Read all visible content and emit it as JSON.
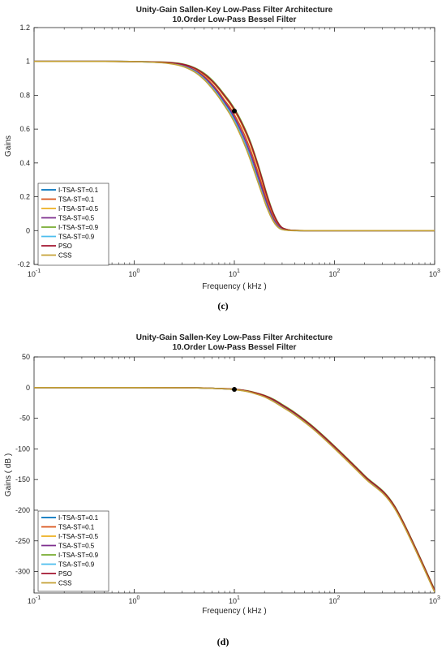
{
  "chart_data": [
    {
      "type": "line",
      "title": "Unity-Gain Sallen-Key Low-Pass Filter Architecture",
      "subtitle": "10.Order Low-Pass Bessel Filter",
      "xlabel": "Frequency ( kHz )",
      "ylabel": "Gains",
      "caption": "(c)",
      "xscale": "log",
      "xlim": [
        0.1,
        1000
      ],
      "ylim": [
        -0.2,
        1.2
      ],
      "xticks": [
        {
          "v": 0.1,
          "base": "10",
          "exp": "-1"
        },
        {
          "v": 1,
          "base": "10",
          "exp": "0"
        },
        {
          "v": 10,
          "base": "10",
          "exp": "1"
        },
        {
          "v": 100,
          "base": "10",
          "exp": "2"
        },
        {
          "v": 1000,
          "base": "10",
          "exp": "3"
        }
      ],
      "yticks": [
        {
          "v": -0.2,
          "label": "-0.2"
        },
        {
          "v": 0,
          "label": "0"
        },
        {
          "v": 0.2,
          "label": "0.2"
        },
        {
          "v": 0.4,
          "label": "0.4"
        },
        {
          "v": 0.6,
          "label": "0.6"
        },
        {
          "v": 0.8,
          "label": "0.8"
        },
        {
          "v": 1,
          "label": "1"
        },
        {
          "v": 1.2,
          "label": "1.2"
        }
      ],
      "legend_position": "bottom-left",
      "marker": {
        "x": 10,
        "y": 0.707
      },
      "series": [
        {
          "name": "I-TSA-ST=0.1",
          "color": "#0072BD",
          "x": [
            0.1,
            0.5,
            1,
            2,
            3,
            4,
            5,
            6,
            7,
            8,
            9,
            10,
            11,
            12,
            13,
            14,
            15,
            17,
            19,
            21,
            24,
            27,
            30,
            35,
            40,
            50,
            100,
            1000
          ],
          "y": [
            1,
            1,
            0.999,
            0.992,
            0.975,
            0.944,
            0.9,
            0.85,
            0.8,
            0.75,
            0.705,
            0.655,
            0.605,
            0.555,
            0.505,
            0.455,
            0.405,
            0.31,
            0.225,
            0.15,
            0.07,
            0.025,
            0.008,
            0.002,
            0.001,
            0,
            0,
            0
          ]
        },
        {
          "name": "TSA-ST=0.1",
          "color": "#D95319",
          "x": [
            0.1,
            0.5,
            1,
            2,
            3,
            4,
            5,
            6,
            7,
            8,
            9,
            10,
            11,
            12,
            13,
            14,
            15,
            17,
            19,
            21,
            24,
            27,
            30,
            35,
            40,
            50,
            100,
            1000
          ],
          "y": [
            1,
            1,
            0.999,
            0.994,
            0.98,
            0.952,
            0.912,
            0.866,
            0.818,
            0.77,
            0.73,
            0.685,
            0.64,
            0.595,
            0.548,
            0.5,
            0.452,
            0.355,
            0.265,
            0.185,
            0.095,
            0.04,
            0.013,
            0.003,
            0.001,
            0,
            0,
            0
          ]
        },
        {
          "name": "I-TSA-ST=0.5",
          "color": "#EDB120",
          "x": [
            0.1,
            0.5,
            1,
            2,
            3,
            4,
            5,
            6,
            7,
            8,
            9,
            10,
            11,
            12,
            13,
            14,
            15,
            17,
            19,
            21,
            24,
            27,
            30,
            35,
            40,
            50,
            100,
            1000
          ],
          "y": [
            1,
            1,
            0.999,
            0.995,
            0.983,
            0.958,
            0.922,
            0.88,
            0.835,
            0.79,
            0.75,
            0.708,
            0.665,
            0.62,
            0.575,
            0.53,
            0.482,
            0.385,
            0.292,
            0.205,
            0.108,
            0.048,
            0.016,
            0.004,
            0.001,
            0,
            0,
            0
          ]
        },
        {
          "name": "TSA-ST=0.5",
          "color": "#7E2F8E",
          "x": [
            0.1,
            0.5,
            1,
            2,
            3,
            4,
            5,
            6,
            7,
            8,
            9,
            10,
            11,
            12,
            13,
            14,
            15,
            17,
            19,
            21,
            24,
            27,
            30,
            35,
            40,
            50,
            100,
            1000
          ],
          "y": [
            1,
            1,
            0.999,
            0.993,
            0.977,
            0.948,
            0.906,
            0.858,
            0.809,
            0.76,
            0.717,
            0.67,
            0.623,
            0.575,
            0.527,
            0.478,
            0.43,
            0.333,
            0.245,
            0.168,
            0.082,
            0.032,
            0.01,
            0.002,
            0.001,
            0,
            0,
            0
          ]
        },
        {
          "name": "I-TSA-ST=0.9",
          "color": "#77AC30",
          "x": [
            0.1,
            0.5,
            1,
            2,
            3,
            4,
            5,
            6,
            7,
            8,
            9,
            10,
            11,
            12,
            13,
            14,
            15,
            17,
            19,
            21,
            24,
            27,
            30,
            35,
            40,
            50,
            100,
            1000
          ],
          "y": [
            1,
            1,
            0.999,
            0.996,
            0.986,
            0.963,
            0.93,
            0.89,
            0.846,
            0.802,
            0.763,
            0.722,
            0.68,
            0.636,
            0.592,
            0.547,
            0.5,
            0.403,
            0.308,
            0.22,
            0.118,
            0.053,
            0.018,
            0.004,
            0.001,
            0,
            0,
            0
          ]
        },
        {
          "name": "TSA-ST=0.9",
          "color": "#4DBEEE",
          "x": [
            0.1,
            0.5,
            1,
            2,
            3,
            4,
            5,
            6,
            7,
            8,
            9,
            10,
            11,
            12,
            13,
            14,
            15,
            17,
            19,
            21,
            24,
            27,
            30,
            35,
            40,
            50,
            100,
            1000
          ],
          "y": [
            1,
            1,
            0.999,
            0.992,
            0.974,
            0.942,
            0.897,
            0.846,
            0.795,
            0.745,
            0.7,
            0.65,
            0.6,
            0.55,
            0.5,
            0.45,
            0.4,
            0.305,
            0.22,
            0.146,
            0.068,
            0.024,
            0.007,
            0.002,
            0,
            0,
            0,
            0
          ]
        },
        {
          "name": "PSO",
          "color": "#A2142F",
          "x": [
            0.1,
            0.5,
            1,
            2,
            3,
            4,
            5,
            6,
            7,
            8,
            9,
            10,
            11,
            12,
            13,
            14,
            15,
            17,
            19,
            21,
            24,
            27,
            30,
            35,
            40,
            50,
            100,
            1000
          ],
          "y": [
            1,
            1,
            0.999,
            0.995,
            0.984,
            0.96,
            0.925,
            0.884,
            0.84,
            0.796,
            0.757,
            0.715,
            0.672,
            0.628,
            0.584,
            0.539,
            0.492,
            0.395,
            0.3,
            0.212,
            0.113,
            0.05,
            0.017,
            0.004,
            0.001,
            0,
            0,
            0
          ]
        },
        {
          "name": "CSS",
          "color": "#C4A035",
          "x": [
            0.1,
            0.5,
            1,
            2,
            3,
            4,
            5,
            6,
            7,
            8,
            9,
            10,
            11,
            12,
            13,
            14,
            15,
            17,
            19,
            21,
            24,
            27,
            30,
            35,
            40,
            50,
            100,
            1000
          ],
          "y": [
            1,
            1,
            0.999,
            0.991,
            0.972,
            0.938,
            0.892,
            0.84,
            0.788,
            0.737,
            0.69,
            0.64,
            0.59,
            0.54,
            0.49,
            0.44,
            0.39,
            0.295,
            0.212,
            0.14,
            0.064,
            0.022,
            0.006,
            0.001,
            0,
            0,
            0,
            0
          ]
        }
      ]
    },
    {
      "type": "line",
      "title": "Unity-Gain Sallen-Key Low-Pass Filter Architecture",
      "subtitle": "10.Order Low-Pass Bessel Filter",
      "xlabel": "Frequency ( kHz )",
      "ylabel": "Gains ( dB )",
      "caption": "(d)",
      "xscale": "log",
      "xlim": [
        0.1,
        1000
      ],
      "ylim": [
        -335,
        50
      ],
      "xticks": [
        {
          "v": 0.1,
          "base": "10",
          "exp": "-1"
        },
        {
          "v": 1,
          "base": "10",
          "exp": "0"
        },
        {
          "v": 10,
          "base": "10",
          "exp": "1"
        },
        {
          "v": 100,
          "base": "10",
          "exp": "2"
        },
        {
          "v": 1000,
          "base": "10",
          "exp": "3"
        }
      ],
      "yticks": [
        {
          "v": 50,
          "label": "50"
        },
        {
          "v": 0,
          "label": "0"
        },
        {
          "v": -50,
          "label": "-50"
        },
        {
          "v": -100,
          "label": "-100"
        },
        {
          "v": -150,
          "label": "-150"
        },
        {
          "v": -200,
          "label": "-200"
        },
        {
          "v": -250,
          "label": "-250"
        },
        {
          "v": -300,
          "label": "-300"
        }
      ],
      "legend_position": "bottom-left",
      "marker": {
        "x": 10,
        "y": -3
      },
      "series": [
        {
          "name": "I-TSA-ST=0.1",
          "color": "#0072BD",
          "x": [
            0.1,
            1,
            3,
            5,
            8,
            10,
            13,
            16,
            20,
            25,
            30,
            40,
            60,
            100,
            200,
            400,
            1000
          ],
          "y": [
            0,
            0,
            -0.2,
            -0.8,
            -2,
            -3,
            -5.5,
            -9,
            -14,
            -22,
            -30,
            -43,
            -65,
            -98,
            -146,
            -196,
            -332
          ]
        },
        {
          "name": "TSA-ST=0.1",
          "color": "#D95319",
          "x": [
            0.1,
            1,
            3,
            5,
            8,
            10,
            13,
            16,
            20,
            25,
            30,
            40,
            60,
            100,
            200,
            400,
            1000
          ],
          "y": [
            0,
            0,
            -0.2,
            -0.8,
            -2,
            -3,
            -5.3,
            -8.6,
            -13.5,
            -21,
            -29,
            -42,
            -64,
            -97,
            -145,
            -195,
            -331
          ]
        },
        {
          "name": "I-TSA-ST=0.5",
          "color": "#EDB120",
          "x": [
            0.1,
            1,
            3,
            5,
            8,
            10,
            13,
            16,
            20,
            25,
            30,
            40,
            60,
            100,
            200,
            400,
            1000
          ],
          "y": [
            0,
            0,
            -0.2,
            -0.7,
            -1.8,
            -2.8,
            -5,
            -8.2,
            -13,
            -20,
            -28,
            -41,
            -63,
            -96,
            -144,
            -194,
            -330
          ]
        },
        {
          "name": "TSA-ST=0.5",
          "color": "#7E2F8E",
          "x": [
            0.1,
            1,
            3,
            5,
            8,
            10,
            13,
            16,
            20,
            25,
            30,
            40,
            60,
            100,
            200,
            400,
            1000
          ],
          "y": [
            0,
            0,
            -0.2,
            -0.8,
            -2,
            -3.1,
            -5.6,
            -9.2,
            -14.3,
            -22.5,
            -30.5,
            -43.5,
            -65.5,
            -98.5,
            -146.5,
            -196.5,
            -332.5
          ]
        },
        {
          "name": "I-TSA-ST=0.9",
          "color": "#77AC30",
          "x": [
            0.1,
            1,
            3,
            5,
            8,
            10,
            13,
            16,
            20,
            25,
            30,
            40,
            60,
            100,
            200,
            400,
            1000
          ],
          "y": [
            0,
            0,
            -0.2,
            -0.7,
            -1.8,
            -2.7,
            -4.8,
            -8,
            -12.7,
            -19.5,
            -27.5,
            -40.5,
            -62.5,
            -95.5,
            -143.5,
            -193.5,
            -329.5
          ]
        },
        {
          "name": "TSA-ST=0.9",
          "color": "#4DBEEE",
          "x": [
            0.1,
            1,
            3,
            5,
            8,
            10,
            13,
            16,
            20,
            25,
            30,
            40,
            60,
            100,
            200,
            400,
            1000
          ],
          "y": [
            0,
            0,
            -0.2,
            -0.8,
            -2.1,
            -3.2,
            -5.8,
            -9.5,
            -14.8,
            -23,
            -31,
            -44,
            -66,
            -99,
            -147,
            -197,
            -333
          ]
        },
        {
          "name": "PSO",
          "color": "#A2142F",
          "x": [
            0.1,
            1,
            3,
            5,
            8,
            10,
            13,
            16,
            20,
            25,
            30,
            40,
            60,
            100,
            200,
            400,
            1000
          ],
          "y": [
            0,
            0,
            -0.2,
            -0.7,
            -1.9,
            -2.9,
            -5.1,
            -8.4,
            -13.2,
            -20.5,
            -28.5,
            -41.5,
            -63.5,
            -96.5,
            -144.5,
            -194.5,
            -330.5
          ]
        },
        {
          "name": "CSS",
          "color": "#C4A035",
          "x": [
            0.1,
            1,
            3,
            5,
            8,
            10,
            13,
            16,
            20,
            25,
            30,
            40,
            60,
            100,
            200,
            400,
            1000
          ],
          "y": [
            0,
            0,
            -0.2,
            -0.8,
            -2.1,
            -3.3,
            -6,
            -9.8,
            -15.2,
            -23.5,
            -31.5,
            -44.5,
            -66.5,
            -99.5,
            -147.5,
            -197.5,
            -333.5
          ]
        }
      ]
    }
  ]
}
